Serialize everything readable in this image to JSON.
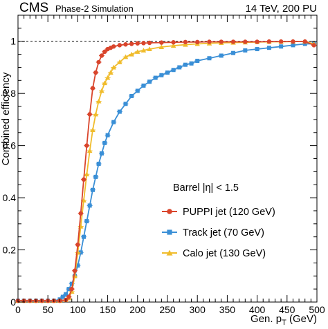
{
  "header": {
    "experiment": "CMS",
    "status": "Phase-2 Simulation",
    "energy": "14 TeV, 200 PU"
  },
  "chart_data": {
    "type": "line",
    "xlabel": "Gen. p_T (GeV)",
    "ylabel": "Combined efficiency",
    "xlim": [
      0,
      500
    ],
    "ylim": [
      0,
      1.1
    ],
    "xticks": [
      0,
      50,
      100,
      150,
      200,
      250,
      300,
      350,
      400,
      450,
      500
    ],
    "yticks": [
      0,
      0.2,
      0.4,
      0.6,
      0.8,
      1
    ],
    "reference_line": 1,
    "legend": {
      "title": "Barrel |η| < 1.5",
      "placement": "center-right"
    },
    "series": [
      {
        "name": "PUPPI jet (120 GeV)",
        "color": "#d9452c",
        "marker": "circle",
        "x": [
          0,
          10,
          20,
          30,
          40,
          50,
          60,
          70,
          80,
          85,
          90,
          95,
          100,
          105,
          110,
          115,
          120,
          125,
          130,
          135,
          140,
          145,
          150,
          155,
          160,
          170,
          180,
          190,
          200,
          210,
          220,
          240,
          260,
          280,
          300,
          320,
          340,
          360,
          380,
          400,
          420,
          440,
          460,
          480,
          495
        ],
        "y": [
          0.005,
          0.005,
          0.005,
          0.005,
          0.005,
          0.005,
          0.005,
          0.005,
          0.008,
          0.02,
          0.05,
          0.12,
          0.22,
          0.34,
          0.47,
          0.6,
          0.72,
          0.82,
          0.88,
          0.92,
          0.945,
          0.96,
          0.97,
          0.975,
          0.98,
          0.985,
          0.988,
          0.99,
          0.992,
          0.993,
          0.994,
          0.995,
          0.996,
          0.997,
          0.997,
          0.998,
          0.998,
          0.998,
          0.998,
          0.998,
          0.999,
          0.999,
          0.999,
          0.999,
          0.985
        ]
      },
      {
        "name": "Track jet (70 GeV)",
        "color": "#3a8fd6",
        "marker": "square",
        "x": [
          0,
          10,
          20,
          30,
          40,
          50,
          60,
          70,
          75,
          80,
          85,
          90,
          95,
          100,
          105,
          110,
          115,
          120,
          125,
          130,
          135,
          140,
          145,
          150,
          160,
          170,
          180,
          190,
          200,
          210,
          220,
          230,
          240,
          250,
          260,
          270,
          280,
          290,
          300,
          320,
          340,
          360,
          380,
          400,
          420,
          440,
          460,
          480,
          495
        ],
        "y": [
          0.005,
          0.005,
          0.005,
          0.005,
          0.005,
          0.005,
          0.005,
          0.01,
          0.02,
          0.03,
          0.05,
          0.07,
          0.1,
          0.14,
          0.19,
          0.25,
          0.31,
          0.37,
          0.43,
          0.48,
          0.53,
          0.57,
          0.61,
          0.64,
          0.69,
          0.73,
          0.76,
          0.79,
          0.81,
          0.83,
          0.845,
          0.86,
          0.87,
          0.88,
          0.89,
          0.9,
          0.91,
          0.915,
          0.925,
          0.935,
          0.945,
          0.955,
          0.965,
          0.97,
          0.975,
          0.98,
          0.985,
          0.99,
          0.99
        ]
      },
      {
        "name": "Calo jet (130 GeV)",
        "color": "#f0bc2c",
        "marker": "triangle",
        "x": [
          0,
          10,
          20,
          30,
          40,
          50,
          60,
          70,
          80,
          85,
          90,
          95,
          100,
          105,
          110,
          115,
          120,
          125,
          130,
          135,
          140,
          145,
          150,
          155,
          160,
          170,
          180,
          190,
          200,
          210,
          220,
          240,
          260,
          280,
          300,
          320,
          340,
          360,
          380,
          400,
          420,
          440,
          460,
          480,
          495
        ],
        "y": [
          0.005,
          0.005,
          0.005,
          0.005,
          0.005,
          0.005,
          0.005,
          0.005,
          0.008,
          0.015,
          0.04,
          0.1,
          0.19,
          0.29,
          0.39,
          0.49,
          0.58,
          0.66,
          0.72,
          0.77,
          0.81,
          0.84,
          0.86,
          0.88,
          0.9,
          0.92,
          0.94,
          0.95,
          0.96,
          0.965,
          0.97,
          0.978,
          0.983,
          0.987,
          0.99,
          0.992,
          0.994,
          0.995,
          0.996,
          0.997,
          0.998,
          0.998,
          0.999,
          0.999,
          0.99
        ]
      }
    ]
  }
}
